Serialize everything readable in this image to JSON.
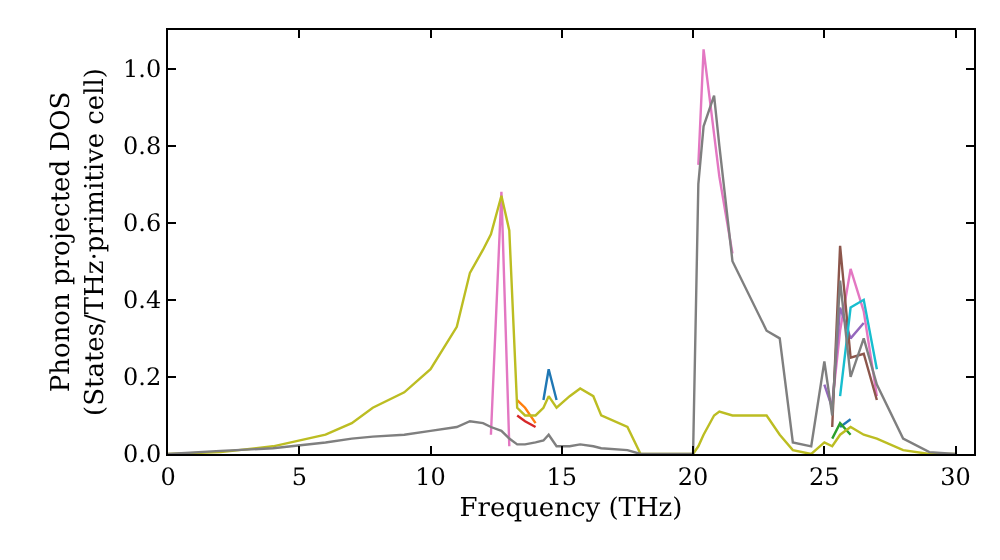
{
  "chart_data": {
    "type": "line",
    "xlabel": "Frequency (THz)",
    "ylabel": "Phonon projected DOS\n(States/THz·primitive cell)",
    "x": [
      0,
      2,
      4,
      6,
      7,
      7.8,
      9,
      10,
      11,
      11.5,
      12,
      12.3,
      12.7,
      13,
      13.3,
      13.6,
      14,
      14.3,
      14.5,
      14.8,
      15.3,
      15.7,
      16.2,
      16.5,
      17.5,
      18,
      20,
      20.2,
      20.4,
      20.8,
      21,
      21.5,
      22.8,
      23.3,
      23.8,
      24.5,
      25,
      25.3,
      25.6,
      26,
      26.5,
      27,
      28,
      29,
      30
    ],
    "series": [
      {
        "color": "#1f77b4",
        "values": [
          null,
          null,
          null,
          null,
          null,
          null,
          null,
          null,
          null,
          null,
          null,
          null,
          null,
          null,
          null,
          null,
          null,
          0.14,
          0.22,
          0.14,
          null,
          null,
          null,
          null,
          null,
          null,
          null,
          null,
          null,
          null,
          null,
          null,
          null,
          null,
          null,
          null,
          null,
          null,
          0.07,
          0.09,
          null,
          null,
          null,
          null,
          null
        ]
      },
      {
        "color": "#ff7f0e",
        "values": [
          null,
          null,
          null,
          null,
          null,
          null,
          null,
          null,
          null,
          null,
          null,
          null,
          null,
          null,
          0.14,
          0.12,
          0.08,
          null,
          null,
          null,
          null,
          null,
          null,
          null,
          null,
          null,
          null,
          null,
          null,
          null,
          null,
          null,
          null,
          null,
          null,
          null,
          null,
          null,
          null,
          null,
          null,
          null,
          null,
          null,
          null
        ]
      },
      {
        "color": "#d62728",
        "values": [
          null,
          null,
          null,
          null,
          null,
          null,
          null,
          null,
          null,
          null,
          null,
          null,
          null,
          null,
          0.1,
          0.085,
          0.07,
          null,
          null,
          null,
          null,
          null,
          null,
          null,
          null,
          null,
          null,
          null,
          null,
          null,
          null,
          null,
          null,
          null,
          null,
          null,
          null,
          null,
          null,
          null,
          null,
          null,
          null,
          null,
          null
        ]
      },
      {
        "color": "#2ca02c",
        "values": [
          null,
          null,
          null,
          null,
          null,
          null,
          null,
          null,
          null,
          null,
          null,
          null,
          null,
          null,
          null,
          null,
          null,
          null,
          null,
          null,
          null,
          null,
          null,
          null,
          null,
          null,
          null,
          null,
          null,
          null,
          null,
          null,
          null,
          null,
          null,
          null,
          null,
          0.04,
          0.08,
          0.05,
          null,
          null,
          null,
          null,
          null
        ]
      },
      {
        "color": "#e377c2",
        "values": [
          null,
          null,
          null,
          null,
          null,
          null,
          null,
          null,
          null,
          null,
          null,
          0.05,
          0.68,
          0.02,
          null,
          null,
          null,
          null,
          null,
          null,
          null,
          null,
          null,
          null,
          null,
          null,
          null,
          0.75,
          1.05,
          0.83,
          0.72,
          0.52,
          null,
          null,
          null,
          null,
          null,
          0.13,
          0.32,
          0.48,
          0.37,
          0.15,
          null,
          null,
          null
        ]
      },
      {
        "color": "#9467bd",
        "values": [
          null,
          null,
          null,
          null,
          null,
          null,
          null,
          null,
          null,
          null,
          null,
          null,
          null,
          null,
          null,
          null,
          null,
          null,
          null,
          null,
          null,
          null,
          null,
          null,
          null,
          null,
          null,
          null,
          null,
          null,
          null,
          null,
          null,
          null,
          null,
          null,
          0.18,
          0.12,
          0.38,
          0.3,
          0.34,
          null,
          null,
          null,
          null
        ]
      },
      {
        "color": "#8c564b",
        "values": [
          null,
          null,
          null,
          null,
          null,
          null,
          null,
          null,
          null,
          null,
          null,
          null,
          null,
          null,
          null,
          null,
          null,
          null,
          null,
          null,
          null,
          null,
          null,
          null,
          null,
          null,
          null,
          null,
          null,
          null,
          null,
          null,
          null,
          null,
          null,
          null,
          null,
          0.07,
          0.54,
          0.25,
          0.26,
          0.14,
          null,
          null,
          null
        ]
      },
      {
        "color": "#17becf",
        "values": [
          null,
          null,
          null,
          null,
          null,
          null,
          null,
          null,
          null,
          null,
          null,
          null,
          null,
          null,
          null,
          null,
          null,
          null,
          null,
          null,
          null,
          null,
          null,
          null,
          null,
          null,
          null,
          null,
          null,
          null,
          null,
          null,
          null,
          null,
          null,
          null,
          null,
          null,
          0.15,
          0.38,
          0.4,
          0.22,
          null,
          null,
          null
        ]
      },
      {
        "color": "#bcbd22",
        "values": [
          0,
          0.005,
          0.02,
          0.05,
          0.08,
          0.12,
          0.16,
          0.22,
          0.33,
          0.47,
          0.53,
          0.57,
          0.67,
          0.58,
          0.12,
          0.1,
          0.1,
          0.12,
          0.15,
          0.12,
          0.15,
          0.17,
          0.15,
          0.1,
          0.07,
          0.0,
          0.0,
          0.02,
          0.05,
          0.1,
          0.11,
          0.1,
          0.1,
          0.05,
          0.01,
          0.0,
          0.03,
          0.02,
          0.05,
          0.07,
          0.05,
          0.04,
          0.01,
          0.0,
          0
        ]
      },
      {
        "color": "#7f7f7f",
        "values": [
          0,
          0.008,
          0.015,
          0.03,
          0.04,
          0.045,
          0.05,
          0.06,
          0.07,
          0.085,
          0.08,
          0.07,
          0.06,
          0.04,
          0.025,
          0.025,
          0.03,
          0.035,
          0.05,
          0.02,
          0.02,
          0.025,
          0.02,
          0.015,
          0.01,
          0,
          0,
          0.7,
          0.85,
          0.93,
          0.8,
          0.5,
          0.32,
          0.3,
          0.03,
          0.02,
          0.24,
          0.1,
          0.45,
          0.2,
          0.3,
          0.18,
          0.04,
          0.005,
          0
        ]
      }
    ],
    "xlim": [
      0,
      30.7
    ],
    "ylim": [
      0,
      1.1
    ],
    "xticks": [
      0,
      5,
      10,
      15,
      20,
      25,
      30
    ],
    "yticks": [
      {
        "value": 0,
        "label": "0.0"
      },
      {
        "value": 0.2,
        "label": "0.2"
      },
      {
        "value": 0.4,
        "label": "0.4"
      },
      {
        "value": 0.6,
        "label": "0.6"
      },
      {
        "value": 0.8,
        "label": "0.8"
      },
      {
        "value": 1.0,
        "label": "1.0"
      }
    ],
    "marker": "none",
    "line_style": "solid"
  }
}
